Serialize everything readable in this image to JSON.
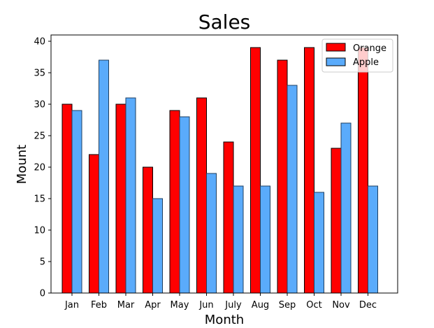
{
  "chart_data": {
    "type": "bar",
    "title": "Sales",
    "xlabel": "Month",
    "ylabel": "Mount",
    "categories": [
      "Jan",
      "Feb",
      "Mar",
      "Apr",
      "May",
      "Jun",
      "July",
      "Aug",
      "Sep",
      "Oct",
      "Nov",
      "Dec"
    ],
    "series": [
      {
        "name": "Orange",
        "color": "#ff0000",
        "values": [
          30,
          22,
          30,
          20,
          29,
          31,
          24,
          39,
          37,
          39,
          23,
          39
        ]
      },
      {
        "name": "Apple",
        "color": "#5aabfb",
        "values": [
          29,
          37,
          31,
          15,
          28,
          19,
          17,
          17,
          33,
          16,
          27,
          17
        ]
      }
    ],
    "ylim": [
      0,
      41
    ],
    "yticks": [
      0,
      5,
      10,
      15,
      20,
      25,
      30,
      35,
      40
    ],
    "grid": false,
    "legend_position": "top-right"
  }
}
